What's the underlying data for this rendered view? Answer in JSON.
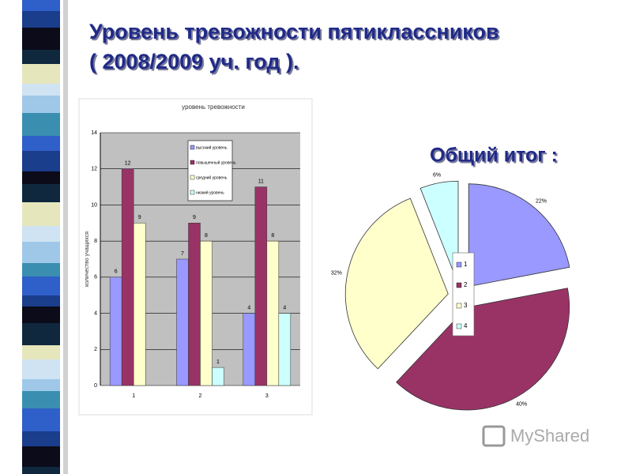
{
  "header": {
    "title_line1": "Уровень тревожности пятиклассников",
    "title_line2": "( 2008/2009 уч. год )."
  },
  "chart_data": [
    {
      "type": "bar",
      "title": "уровень тревожности",
      "y_label": "количество учащихся",
      "categories": [
        "1",
        "2",
        "3"
      ],
      "series": [
        {
          "name": "высокий уровень",
          "color": "#9999ff",
          "values": [
            6,
            7,
            4
          ]
        },
        {
          "name": "повышенный уровень",
          "color": "#993366",
          "values": [
            12,
            9,
            11
          ]
        },
        {
          "name": "средний уровень",
          "color": "#ffffcc",
          "values": [
            9,
            8,
            8
          ]
        },
        {
          "name": "низкий уровень",
          "color": "#ccffff",
          "values": [
            null,
            1,
            4
          ]
        }
      ],
      "ylim": [
        0,
        14
      ],
      "yticks": [
        0,
        2,
        4,
        6,
        8,
        10,
        12,
        14
      ],
      "grid": true
    },
    {
      "type": "pie",
      "title": "Общий итог :",
      "categories": [
        "1",
        "2",
        "3",
        "4"
      ],
      "values": [
        22,
        40,
        32,
        6
      ],
      "value_labels": [
        "22%",
        "40%",
        "32%",
        "6%"
      ],
      "colors": [
        "#9999ff",
        "#993366",
        "#ffffcc",
        "#ccffff"
      ]
    }
  ],
  "watermark": "MyShared"
}
